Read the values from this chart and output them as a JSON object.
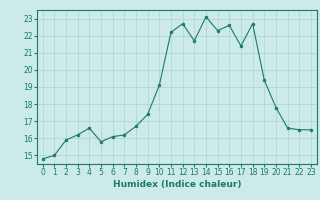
{
  "x": [
    0,
    1,
    2,
    3,
    4,
    5,
    6,
    7,
    8,
    9,
    10,
    11,
    12,
    13,
    14,
    15,
    16,
    17,
    18,
    19,
    20,
    21,
    22,
    23
  ],
  "y": [
    14.8,
    15.0,
    15.9,
    16.2,
    16.6,
    15.8,
    16.1,
    16.2,
    16.7,
    17.4,
    19.1,
    22.2,
    22.7,
    21.7,
    23.1,
    22.3,
    22.6,
    21.4,
    22.7,
    19.4,
    17.8,
    16.6,
    16.5,
    16.5
  ],
  "line_color": "#1a7a6e",
  "marker": "o",
  "marker_size": 2,
  "bg_color": "#cceae7",
  "grid_color": "#aad4d0",
  "xlabel": "Humidex (Indice chaleur)",
  "ylim": [
    14.5,
    23.5
  ],
  "xlim": [
    -0.5,
    23.5
  ],
  "yticks": [
    15,
    16,
    17,
    18,
    19,
    20,
    21,
    22,
    23
  ],
  "xticks": [
    0,
    1,
    2,
    3,
    4,
    5,
    6,
    7,
    8,
    9,
    10,
    11,
    12,
    13,
    14,
    15,
    16,
    17,
    18,
    19,
    20,
    21,
    22,
    23
  ],
  "xlabel_fontsize": 6.5,
  "tick_fontsize": 5.5
}
